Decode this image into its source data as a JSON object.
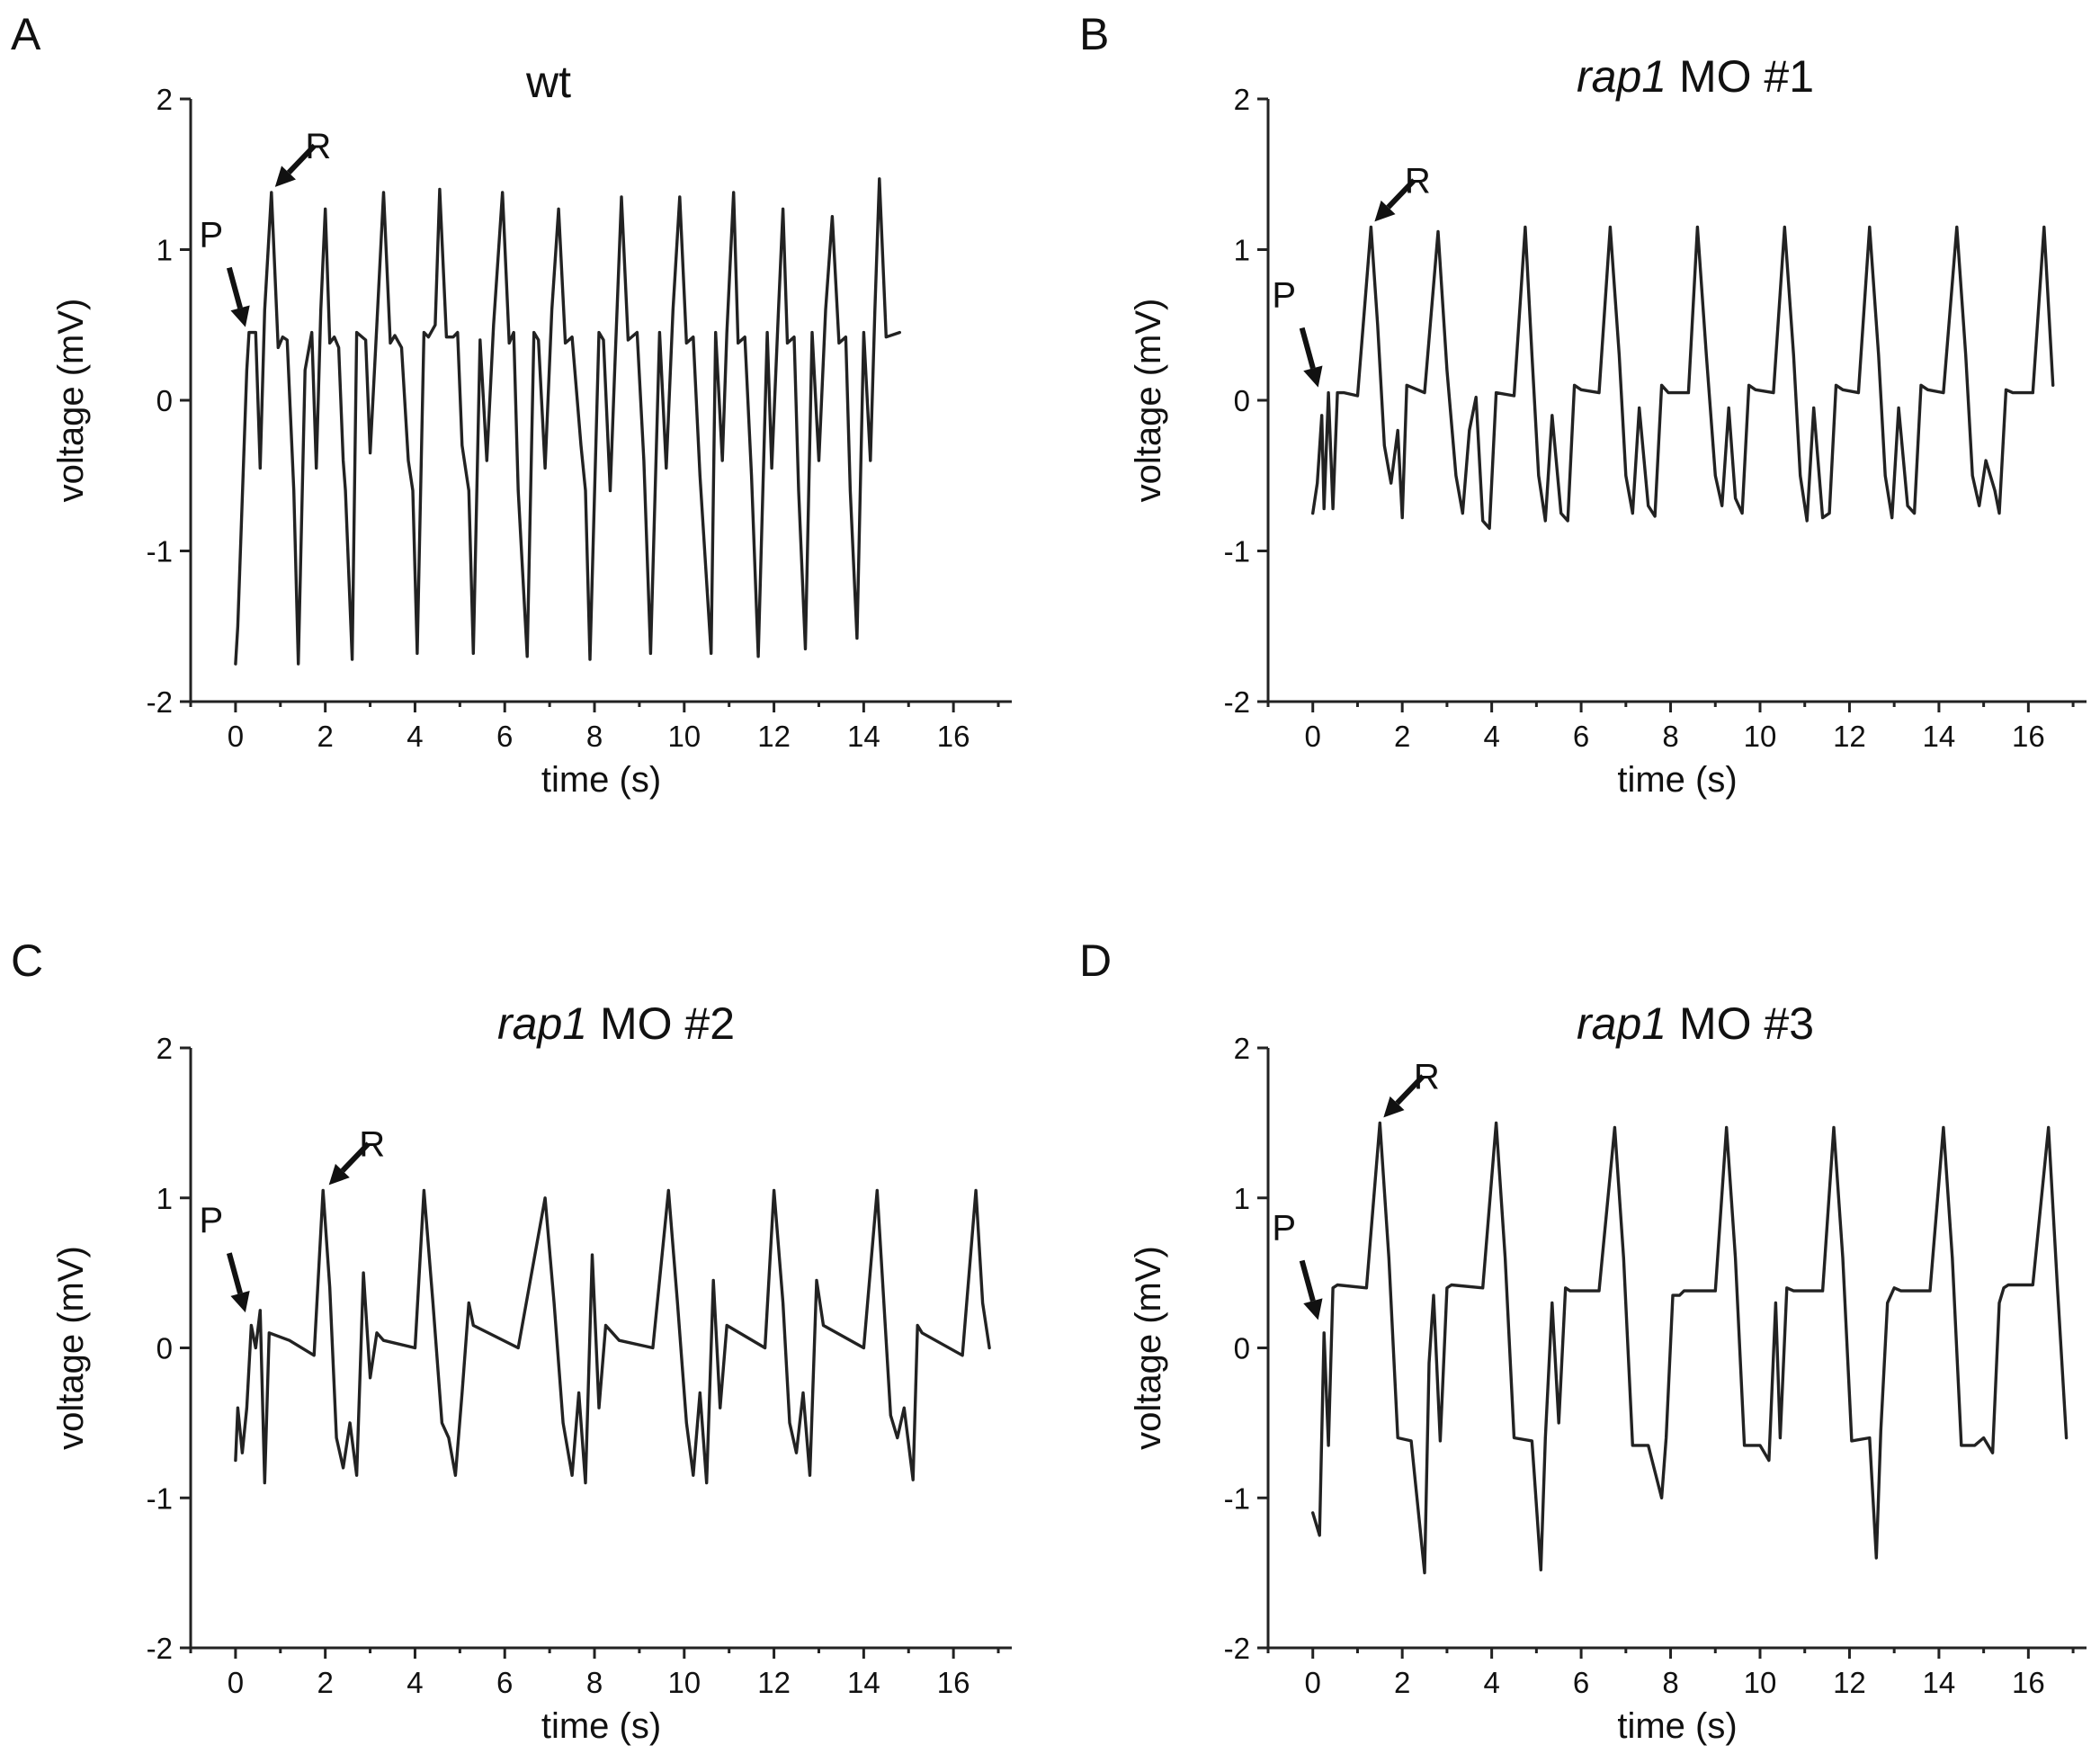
{
  "chart_data": [
    {
      "panel": "A",
      "title": "wt",
      "type": "line",
      "xlabel": "time (s)",
      "ylabel": "voltage (mV)",
      "xlim": [
        -1,
        17.3
      ],
      "ylim": [
        -2,
        2
      ],
      "xticks": [
        0,
        2,
        4,
        6,
        8,
        10,
        12,
        14,
        16
      ],
      "yticks": [
        2,
        1,
        0,
        -1,
        -2
      ],
      "grid": false,
      "annotations": [
        {
          "text": "P",
          "x": 0.3,
          "y": 0.45
        },
        {
          "text": "R",
          "x": 0.8,
          "y": 1.38
        }
      ],
      "x": [
        0.0,
        0.05,
        0.25,
        0.3,
        0.45,
        0.55,
        0.65,
        0.8,
        0.95,
        1.05,
        1.15,
        1.3,
        1.4,
        1.55,
        1.7,
        1.8,
        1.9,
        2.0,
        2.1,
        2.2,
        2.3,
        2.4,
        2.45,
        2.6,
        2.7,
        2.9,
        3.0,
        3.15,
        3.3,
        3.45,
        3.55,
        3.7,
        3.85,
        3.95,
        4.05,
        4.2,
        4.3,
        4.45,
        4.55,
        4.7,
        4.85,
        4.95,
        5.05,
        5.2,
        5.3,
        5.45,
        5.6,
        5.75,
        5.95,
        6.1,
        6.2,
        6.3,
        6.5,
        6.65,
        6.75,
        6.9,
        7.05,
        7.2,
        7.35,
        7.5,
        7.7,
        7.8,
        7.9,
        8.1,
        8.2,
        8.35,
        8.45,
        8.6,
        8.75,
        8.95,
        9.1,
        9.25,
        9.45,
        9.6,
        9.75,
        9.9,
        10.05,
        10.2,
        10.35,
        10.6,
        10.7,
        10.85,
        10.95,
        11.1,
        11.2,
        11.35,
        11.5,
        11.65,
        11.85,
        11.95,
        12.1,
        12.2,
        12.3,
        12.45,
        12.55,
        12.7,
        12.85,
        13.0,
        13.15,
        13.3,
        13.45,
        13.6,
        13.7,
        13.85,
        14.0,
        14.15,
        14.25,
        14.35,
        14.5,
        14.8
      ],
      "y": [
        -1.75,
        -1.5,
        0.2,
        0.45,
        0.45,
        -0.45,
        0.6,
        1.38,
        0.35,
        0.42,
        0.4,
        -0.6,
        -1.75,
        0.2,
        0.45,
        -0.45,
        0.6,
        1.27,
        0.38,
        0.42,
        0.35,
        -0.4,
        -0.6,
        -1.72,
        0.45,
        0.4,
        -0.35,
        0.5,
        1.38,
        0.38,
        0.43,
        0.35,
        -0.4,
        -0.6,
        -1.68,
        0.45,
        0.42,
        0.5,
        1.4,
        0.42,
        0.42,
        0.45,
        -0.3,
        -0.6,
        -1.68,
        0.4,
        -0.4,
        0.5,
        1.38,
        0.38,
        0.45,
        -0.6,
        -1.7,
        0.45,
        0.4,
        -0.45,
        0.6,
        1.27,
        0.38,
        0.42,
        -0.3,
        -0.6,
        -1.72,
        0.45,
        0.4,
        -0.6,
        0.2,
        1.35,
        0.4,
        0.45,
        -0.4,
        -1.68,
        0.45,
        -0.45,
        0.6,
        1.35,
        0.38,
        0.42,
        -0.5,
        -1.68,
        0.45,
        -0.4,
        0.45,
        1.38,
        0.38,
        0.42,
        -0.5,
        -1.7,
        0.45,
        -0.45,
        0.6,
        1.27,
        0.38,
        0.42,
        -0.6,
        -1.65,
        0.45,
        -0.4,
        0.6,
        1.22,
        0.38,
        0.42,
        -0.6,
        -1.58,
        0.45,
        -0.4,
        0.6,
        1.47,
        0.42,
        0.45
      ]
    },
    {
      "panel": "B",
      "title": "rap1 MO #1",
      "type": "line",
      "xlabel": "time (s)",
      "ylabel": "voltage (mV)",
      "xlim": [
        -1,
        17.3
      ],
      "ylim": [
        -2,
        2
      ],
      "xticks": [
        0,
        2,
        4,
        6,
        8,
        10,
        12,
        14,
        16
      ],
      "yticks": [
        2,
        1,
        0,
        -1,
        -2
      ],
      "grid": false,
      "annotations": [
        {
          "text": "P",
          "x": 0.2,
          "y": 0.05
        },
        {
          "text": "R",
          "x": 1.3,
          "y": 1.15
        }
      ],
      "x": [
        0.0,
        0.1,
        0.2,
        0.25,
        0.35,
        0.45,
        0.55,
        0.7,
        1.0,
        1.3,
        1.45,
        1.6,
        1.75,
        1.9,
        2.0,
        2.1,
        2.5,
        2.8,
        3.0,
        3.2,
        3.35,
        3.5,
        3.65,
        3.8,
        3.95,
        4.1,
        4.5,
        4.75,
        4.9,
        5.05,
        5.2,
        5.35,
        5.55,
        5.7,
        5.85,
        6.0,
        6.4,
        6.65,
        6.85,
        7.0,
        7.15,
        7.3,
        7.5,
        7.65,
        7.8,
        7.95,
        8.4,
        8.6,
        8.8,
        9.0,
        9.15,
        9.3,
        9.45,
        9.6,
        9.75,
        9.9,
        10.3,
        10.55,
        10.75,
        10.9,
        11.05,
        11.2,
        11.4,
        11.55,
        11.7,
        11.85,
        12.2,
        12.45,
        12.65,
        12.8,
        12.95,
        13.1,
        13.3,
        13.45,
        13.6,
        13.75,
        14.1,
        14.4,
        14.6,
        14.75,
        14.9,
        15.05,
        15.25,
        15.35,
        15.5,
        15.65,
        16.1,
        16.35,
        16.55
      ],
      "y": [
        -0.75,
        -0.55,
        -0.1,
        -0.72,
        0.05,
        -0.72,
        0.05,
        0.05,
        0.03,
        1.15,
        0.5,
        -0.3,
        -0.55,
        -0.2,
        -0.78,
        0.1,
        0.05,
        1.12,
        0.2,
        -0.5,
        -0.75,
        -0.2,
        0.02,
        -0.8,
        -0.85,
        0.05,
        0.03,
        1.15,
        0.3,
        -0.5,
        -0.8,
        -0.1,
        -0.75,
        -0.8,
        0.1,
        0.07,
        0.05,
        1.15,
        0.3,
        -0.5,
        -0.75,
        -0.05,
        -0.7,
        -0.77,
        0.1,
        0.05,
        0.05,
        1.15,
        0.3,
        -0.5,
        -0.7,
        -0.05,
        -0.65,
        -0.75,
        0.1,
        0.07,
        0.05,
        1.15,
        0.3,
        -0.5,
        -0.8,
        -0.05,
        -0.78,
        -0.75,
        0.1,
        0.07,
        0.05,
        1.15,
        0.3,
        -0.5,
        -0.78,
        -0.05,
        -0.7,
        -0.75,
        0.1,
        0.07,
        0.05,
        1.15,
        0.3,
        -0.5,
        -0.7,
        -0.4,
        -0.6,
        -0.75,
        0.07,
        0.05,
        0.05,
        1.15,
        0.1
      ]
    },
    {
      "panel": "C",
      "title": "rap1 MO #2",
      "type": "line",
      "xlabel": "time (s)",
      "ylabel": "voltage (mV)",
      "xlim": [
        -1,
        17.3
      ],
      "ylim": [
        -2,
        2
      ],
      "xticks": [
        0,
        2,
        4,
        6,
        8,
        10,
        12,
        14,
        16
      ],
      "yticks": [
        2,
        1,
        0,
        -1,
        -2
      ],
      "grid": false,
      "annotations": [
        {
          "text": "P",
          "x": 0.3,
          "y": 0.2
        },
        {
          "text": "R",
          "x": 2.0,
          "y": 1.05
        }
      ],
      "x": [
        0.0,
        0.05,
        0.15,
        0.25,
        0.35,
        0.45,
        0.55,
        0.65,
        0.75,
        1.2,
        1.75,
        1.95,
        2.1,
        2.25,
        2.4,
        2.55,
        2.7,
        2.85,
        3.0,
        3.15,
        3.3,
        4.0,
        4.2,
        4.4,
        4.6,
        4.75,
        4.9,
        5.05,
        5.2,
        5.3,
        6.3,
        6.9,
        7.1,
        7.3,
        7.5,
        7.65,
        7.8,
        7.95,
        8.1,
        8.25,
        8.4,
        8.55,
        9.3,
        9.65,
        9.85,
        10.05,
        10.2,
        10.35,
        10.5,
        10.65,
        10.8,
        10.95,
        11.8,
        12.0,
        12.2,
        12.35,
        12.5,
        12.65,
        12.8,
        12.95,
        13.1,
        14.0,
        14.3,
        14.45,
        14.6,
        14.75,
        14.9,
        15.1,
        15.2,
        15.3,
        16.2,
        16.5,
        16.65,
        16.8
      ],
      "y": [
        -0.75,
        -0.4,
        -0.7,
        -0.4,
        0.15,
        0.0,
        0.25,
        -0.9,
        0.1,
        0.05,
        -0.05,
        1.05,
        0.4,
        -0.6,
        -0.8,
        -0.5,
        -0.85,
        0.5,
        -0.2,
        0.1,
        0.05,
        0.0,
        1.05,
        0.3,
        -0.5,
        -0.6,
        -0.85,
        -0.3,
        0.3,
        0.15,
        0.0,
        1.0,
        0.3,
        -0.5,
        -0.85,
        -0.3,
        -0.9,
        0.62,
        -0.4,
        0.15,
        0.1,
        0.05,
        0.0,
        1.05,
        0.3,
        -0.5,
        -0.85,
        -0.3,
        -0.9,
        0.45,
        -0.4,
        0.15,
        0.0,
        1.05,
        0.3,
        -0.5,
        -0.7,
        -0.3,
        -0.85,
        0.45,
        0.15,
        0.0,
        1.05,
        0.3,
        -0.45,
        -0.6,
        -0.4,
        -0.88,
        0.15,
        0.1,
        -0.05,
        1.05,
        0.3,
        0.0
      ]
    },
    {
      "panel": "D",
      "title": "rap1 MO #3",
      "type": "line",
      "xlabel": "time (s)",
      "ylabel": "voltage (mV)",
      "xlim": [
        -1,
        17.3
      ],
      "ylim": [
        -2,
        2
      ],
      "xticks": [
        0,
        2,
        4,
        6,
        8,
        10,
        12,
        14,
        16
      ],
      "yticks": [
        2,
        1,
        0,
        -1,
        -2
      ],
      "grid": false,
      "annotations": [
        {
          "text": "P",
          "x": 0.2,
          "y": 0.15
        },
        {
          "text": "R",
          "x": 1.5,
          "y": 1.5
        }
      ],
      "x": [
        0.0,
        0.15,
        0.25,
        0.35,
        0.45,
        0.55,
        1.2,
        1.5,
        1.7,
        1.9,
        2.2,
        2.5,
        2.6,
        2.7,
        2.85,
        3.0,
        3.1,
        3.8,
        4.1,
        4.3,
        4.5,
        4.9,
        5.1,
        5.2,
        5.35,
        5.5,
        5.65,
        5.75,
        6.4,
        6.75,
        6.95,
        7.15,
        7.5,
        7.8,
        7.9,
        8.05,
        8.2,
        8.3,
        9.0,
        9.25,
        9.45,
        9.65,
        10.0,
        10.2,
        10.35,
        10.45,
        10.6,
        10.75,
        11.4,
        11.65,
        11.85,
        12.05,
        12.45,
        12.6,
        12.7,
        12.85,
        13.0,
        13.15,
        13.8,
        14.1,
        14.3,
        14.5,
        14.8,
        15.0,
        15.2,
        15.35,
        15.45,
        15.55,
        16.1,
        16.45,
        16.65,
        16.85
      ],
      "y": [
        -1.1,
        -1.25,
        0.1,
        -0.65,
        0.4,
        0.42,
        0.4,
        1.5,
        0.6,
        -0.6,
        -0.62,
        -1.5,
        -0.1,
        0.35,
        -0.62,
        0.4,
        0.42,
        0.4,
        1.5,
        0.6,
        -0.6,
        -0.62,
        -1.48,
        -0.6,
        0.3,
        -0.5,
        0.4,
        0.38,
        0.38,
        1.47,
        0.6,
        -0.65,
        -0.65,
        -1.0,
        -0.6,
        0.35,
        0.35,
        0.38,
        0.38,
        1.47,
        0.6,
        -0.65,
        -0.65,
        -0.75,
        0.3,
        -0.6,
        0.4,
        0.38,
        0.38,
        1.47,
        0.6,
        -0.62,
        -0.6,
        -1.4,
        -0.55,
        0.3,
        0.4,
        0.38,
        0.38,
        1.47,
        0.6,
        -0.65,
        -0.65,
        -0.6,
        -0.7,
        0.3,
        0.4,
        0.42,
        0.42,
        1.47,
        0.4,
        -0.6
      ]
    }
  ]
}
